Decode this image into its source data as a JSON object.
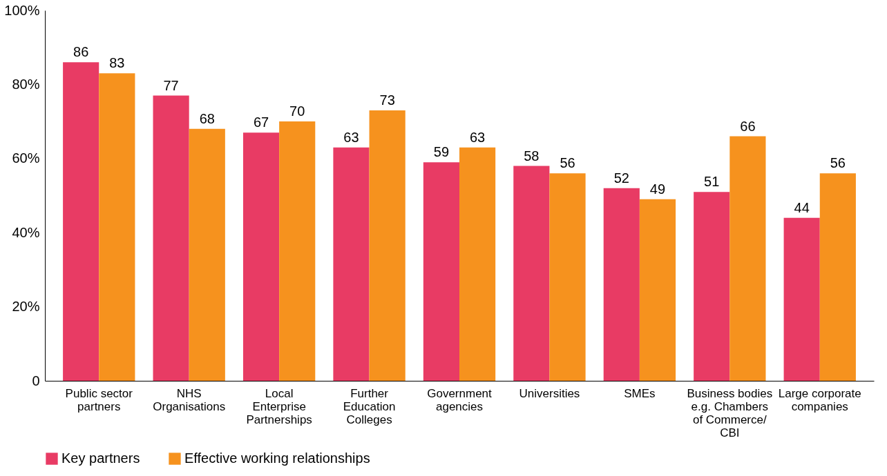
{
  "chart_data": {
    "type": "bar",
    "categories": [
      "Public sector partners",
      "NHS Organisations",
      "Local Enterprise Partnerships",
      "Further Education Colleges",
      "Government agencies",
      "Universities",
      "SMEs",
      "Business bodies e.g. Chambers of Commerce/ CBI",
      "Large corporate companies"
    ],
    "series": [
      {
        "name": "Key partners",
        "color": "#e83b64",
        "values": [
          86,
          77,
          67,
          63,
          59,
          58,
          52,
          51,
          44
        ]
      },
      {
        "name": "Effective working relationships",
        "color": "#f6921e",
        "values": [
          83,
          68,
          70,
          73,
          63,
          56,
          49,
          66,
          56
        ]
      }
    ],
    "ylim": [
      0,
      100
    ],
    "yticks": [
      0,
      {
        "value": 20,
        "label": "20%"
      },
      {
        "value": 40,
        "label": "40%"
      },
      {
        "value": 60,
        "label": "60%"
      },
      {
        "value": 80,
        "label": "80%"
      },
      {
        "value": 100,
        "label": "100%"
      }
    ],
    "data_labels": true,
    "grid": false,
    "legend": "bottom left"
  }
}
